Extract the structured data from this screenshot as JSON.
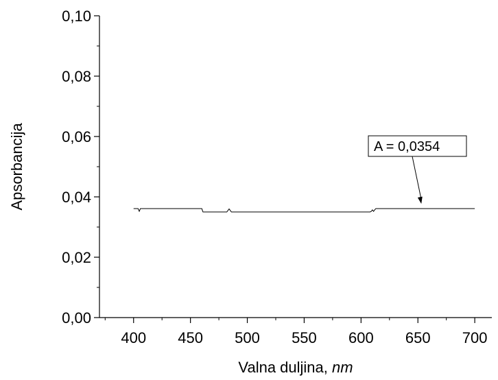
{
  "chart_data": {
    "type": "line",
    "xlabel": "Valna duljina, ",
    "xlabel_unit": "nm",
    "ylabel": "Apsorbancija",
    "xlim": [
      370,
      715
    ],
    "ylim": [
      0,
      0.1
    ],
    "x_ticks": [
      400,
      450,
      500,
      550,
      600,
      650,
      700
    ],
    "x_tick_labels": [
      "400",
      "450",
      "500",
      "550",
      "600",
      "650",
      "700"
    ],
    "y_ticks": [
      0,
      0.02,
      0.04,
      0.06,
      0.08,
      0.1
    ],
    "y_tick_labels": [
      "0,00",
      "0,02",
      "0,04",
      "0,06",
      "0,08",
      "0,10"
    ],
    "grid": false,
    "series": [
      {
        "x": [
          400,
          404,
          405,
          406,
          410,
          460,
          461,
          500,
          482,
          483,
          484,
          485,
          486,
          608,
          609,
          610,
          611,
          612,
          613,
          650,
          700
        ],
        "y": [
          0.0361,
          0.0361,
          0.0352,
          0.0361,
          0.0361,
          0.0361,
          0.035,
          0.035,
          0.035,
          0.0355,
          0.036,
          0.0355,
          0.035,
          0.035,
          0.0352,
          0.0357,
          0.0352,
          0.0357,
          0.0361,
          0.0361,
          0.0361
        ]
      }
    ],
    "annotation": {
      "text": "A = 0,0354",
      "arrow_to": [
        653,
        0.0377
      ]
    }
  }
}
